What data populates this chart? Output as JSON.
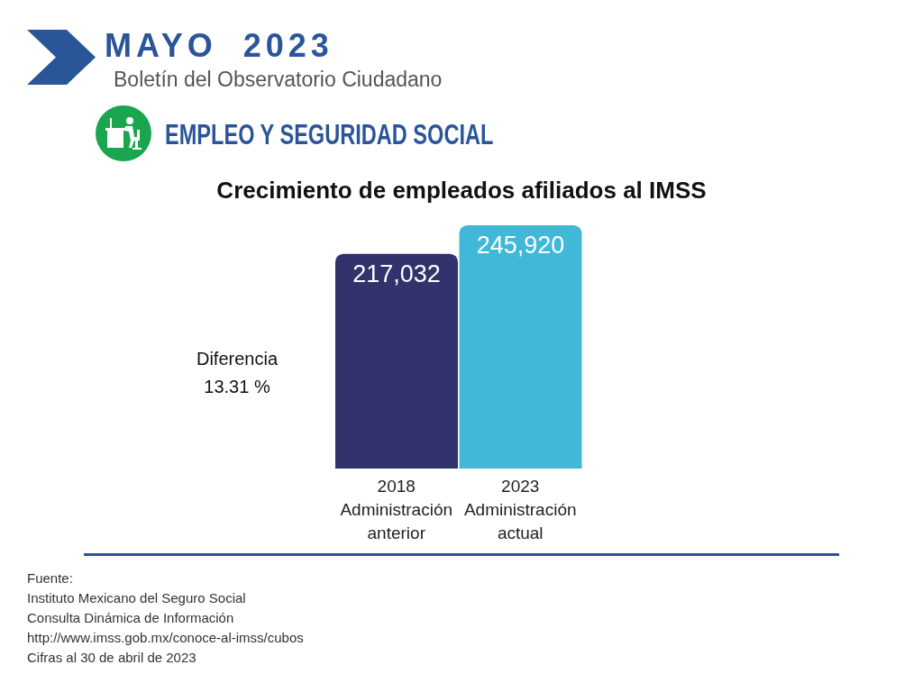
{
  "chart_data": {
    "type": "bar",
    "title": "Crecimiento de empleados afiliados al IMSS",
    "subtitle": "EMPLEO Y SEGURIDAD SOCIAL",
    "categories": [
      "2018 Administración anterior",
      "2023 Administración actual"
    ],
    "values": [
      217032,
      245920
    ],
    "value_labels": [
      "217,032",
      "245,920"
    ],
    "colors": [
      "#32336c",
      "#41b8d8"
    ],
    "tick_labels": "x",
    "annotations": [
      "MAYO 2023",
      "Boletín del Observatorio Ciudadano",
      "Diferencia 13.31 %",
      "Fuente:",
      "Instituto Mexicano del Seguro Social",
      "Consulta Dinámica de Información",
      "http://www.imss.gob.mx/conoce-al-imss/cubos",
      "Cifras al 30 de abril de 2023"
    ]
  }
}
